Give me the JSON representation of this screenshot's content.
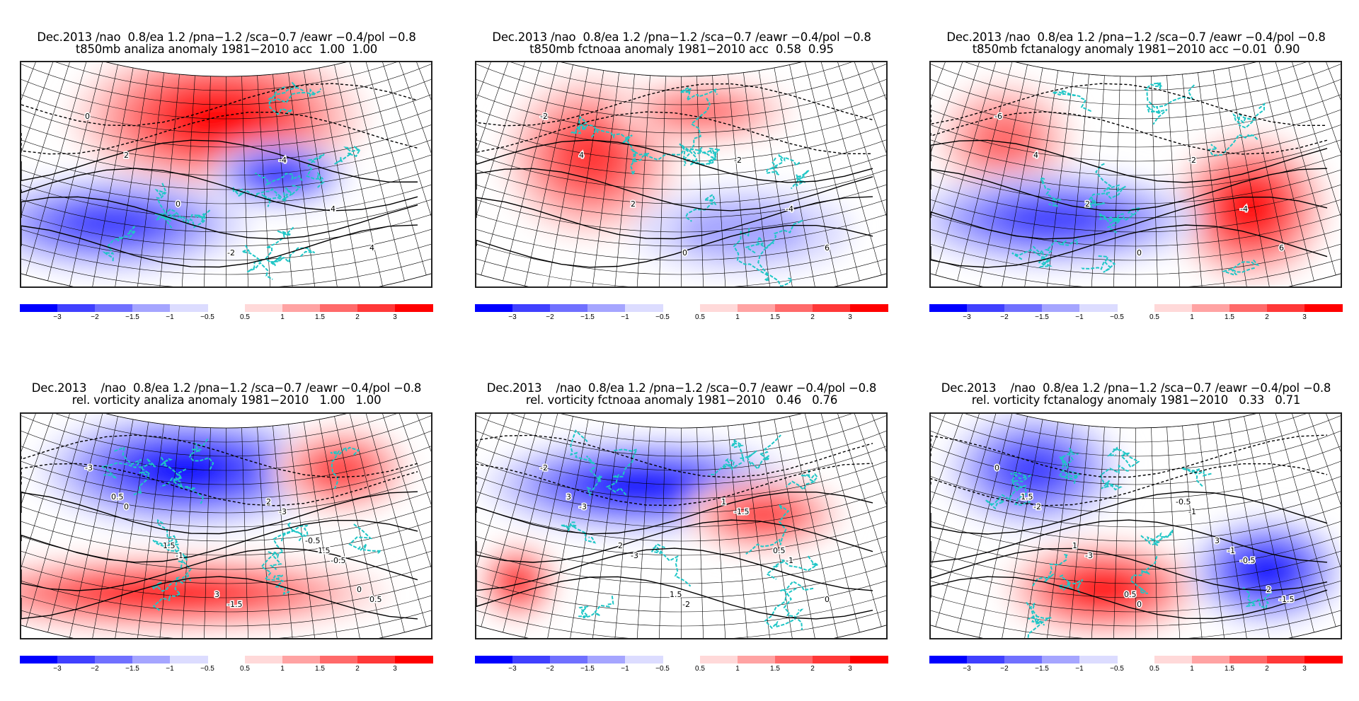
{
  "chart_data": [
    {
      "type": "heatmap",
      "panel": "t850-analiza",
      "title_line1": "Dec.2013 /nao  0.8/ea 1.2 /pna−1.2 /sca−0.7 /eawr −0.4/pol −0.8",
      "title_line2": "t850mb analiza anomaly 1981−2010 acc  1.00  1.00",
      "variable": "t850mb",
      "source": "analiza",
      "reference_period": "1981-2010",
      "acc": [
        1.0,
        1.0
      ],
      "projection": "conic Europe/North Atlantic",
      "anomaly_pattern": [
        {
          "region": "north-central (Scandinavia/Arctic)",
          "sign": "positive",
          "peak": 3
        },
        {
          "region": "east-central (Black Sea/Caspian)",
          "sign": "negative",
          "peak": -4
        },
        {
          "region": "south-west (Atlantic/N. Africa)",
          "sign": "negative",
          "peak": -2
        }
      ],
      "contour_labels": [
        "0",
        "4",
        "-4",
        "-2",
        "0",
        "2",
        "4"
      ]
    },
    {
      "type": "heatmap",
      "panel": "t850-fctnoaa",
      "title_line1": "Dec.2013 /nao  0.8/ea 1.2 /pna−1.2 /sca−0.7 /eawr −0.4/pol −0.8",
      "title_line2": "t850mb fctnoaa anomaly 1981−2010 acc  0.58  0.95",
      "variable": "t850mb",
      "source": "fctnoaa",
      "reference_period": "1981-2010",
      "acc": [
        0.58,
        0.95
      ],
      "anomaly_pattern": [
        {
          "region": "west-central Europe",
          "sign": "positive",
          "peak": 2
        },
        {
          "region": "north-east",
          "sign": "positive",
          "peak": 1.5
        },
        {
          "region": "south-east",
          "sign": "negative",
          "peak": -1
        }
      ],
      "contour_labels": [
        "-2",
        "-4",
        "-2",
        "0",
        "2",
        "4",
        "6"
      ]
    },
    {
      "type": "heatmap",
      "panel": "t850-fctanalogy",
      "title_line1": "Dec.2013 /nao  0.8/ea 1.2 /pna−1.2 /sca−0.7 /eawr −0.4/pol −0.8",
      "title_line2": "t850mb fctanalogy anomaly 1981−2010 acc −0.01  0.90",
      "variable": "t850mb",
      "source": "fctanalogy",
      "reference_period": "1981-2010",
      "acc": [
        -0.01,
        0.9
      ],
      "anomaly_pattern": [
        {
          "region": "north-west",
          "sign": "positive",
          "peak": 1.5
        },
        {
          "region": "east / south-east",
          "sign": "positive",
          "peak": 3
        },
        {
          "region": "south-west / central",
          "sign": "negative",
          "peak": -2
        }
      ],
      "contour_labels": [
        "-6",
        "-4",
        "-2",
        "0",
        "2",
        "4",
        "6"
      ]
    },
    {
      "type": "heatmap",
      "panel": "vort-analiza",
      "title_line1": "Dec.2013    /nao  0.8/ea 1.2 /pna−1.2 /sca−0.7 /eawr −0.4/pol −0.8",
      "title_line2": "rel. vorticity analiza anomaly 1981−2010   1.00   1.00",
      "variable": "rel. vorticity",
      "source": "analiza",
      "reference_period": "1981-2010",
      "acc": [
        1.0,
        1.0
      ],
      "anomaly_pattern": [
        {
          "region": "north-central Europe",
          "sign": "negative",
          "peak": -3
        },
        {
          "region": "north-east",
          "sign": "positive",
          "peak": 2
        },
        {
          "region": "south-west / south-east",
          "sign": "positive",
          "peak": 3
        }
      ],
      "contour_labels": [
        "-3",
        "-0.5",
        "-3",
        "-1.5",
        "-1",
        "0",
        "0.5",
        "1.5",
        "2",
        "3",
        "1.5",
        "0.5",
        "0",
        "-0.5"
      ]
    },
    {
      "type": "heatmap",
      "panel": "vort-fctnoaa",
      "title_line1": "Dec.2013    /nao  0.8/ea 1.2 /pna−1.2 /sca−0.7 /eawr −0.4/pol −0.8",
      "title_line2": "rel. vorticity fctnoaa anomaly 1981−2010   0.46   0.76",
      "variable": "rel. vorticity",
      "source": "fctnoaa",
      "reference_period": "1981-2010",
      "acc": [
        0.46,
        0.76
      ],
      "anomaly_pattern": [
        {
          "region": "north / central",
          "sign": "negative",
          "peak": -3
        },
        {
          "region": "south-east",
          "sign": "positive",
          "peak": 2
        },
        {
          "region": "far north-west",
          "sign": "positive",
          "peak": 3
        }
      ],
      "contour_labels": [
        "-2",
        "-1",
        "-1.5",
        "-2",
        "-3",
        "-3",
        "0",
        "0.5",
        "1",
        "1.5",
        "2",
        "3"
      ]
    },
    {
      "type": "heatmap",
      "panel": "vort-fctanalogy",
      "title_line1": "Dec.2013    /nao  0.8/ea 1.2 /pna−1.2 /sca−0.7 /eawr −0.4/pol −0.8",
      "title_line2": "rel. vorticity fctanalogy anomaly 1981−2010   0.33   0.71",
      "variable": "rel. vorticity",
      "source": "fctanalogy",
      "reference_period": "1981-2010",
      "acc": [
        0.33,
        0.71
      ],
      "anomaly_pattern": [
        {
          "region": "north-west",
          "sign": "negative",
          "peak": -2
        },
        {
          "region": "south-central",
          "sign": "positive",
          "peak": 3
        },
        {
          "region": "south-east",
          "sign": "negative",
          "peak": -3
        }
      ],
      "contour_labels": [
        "0",
        "-0.5",
        "-1",
        "0",
        "-3",
        "-2",
        "-1.5",
        "-1",
        "-0.5",
        "0.5",
        "1",
        "1.5",
        "2",
        "3"
      ]
    }
  ],
  "colorbar": {
    "negative": {
      "colors": [
        "#0000ff",
        "#4040ff",
        "#7070ff",
        "#a5a5ff",
        "#dcdcff"
      ],
      "labels": [
        "−3",
        "−2",
        "−1.5",
        "−1",
        "−0.5"
      ]
    },
    "positive": {
      "colors": [
        "#ffd9d9",
        "#ffa3a3",
        "#ff6a6a",
        "#ff3838",
        "#ff0000"
      ],
      "labels": [
        "0.5",
        "1",
        "1.5",
        "2",
        "3"
      ]
    }
  },
  "colors": {
    "coastline": "#1fc6c6",
    "grid": "#000000",
    "contour": "#000000"
  }
}
